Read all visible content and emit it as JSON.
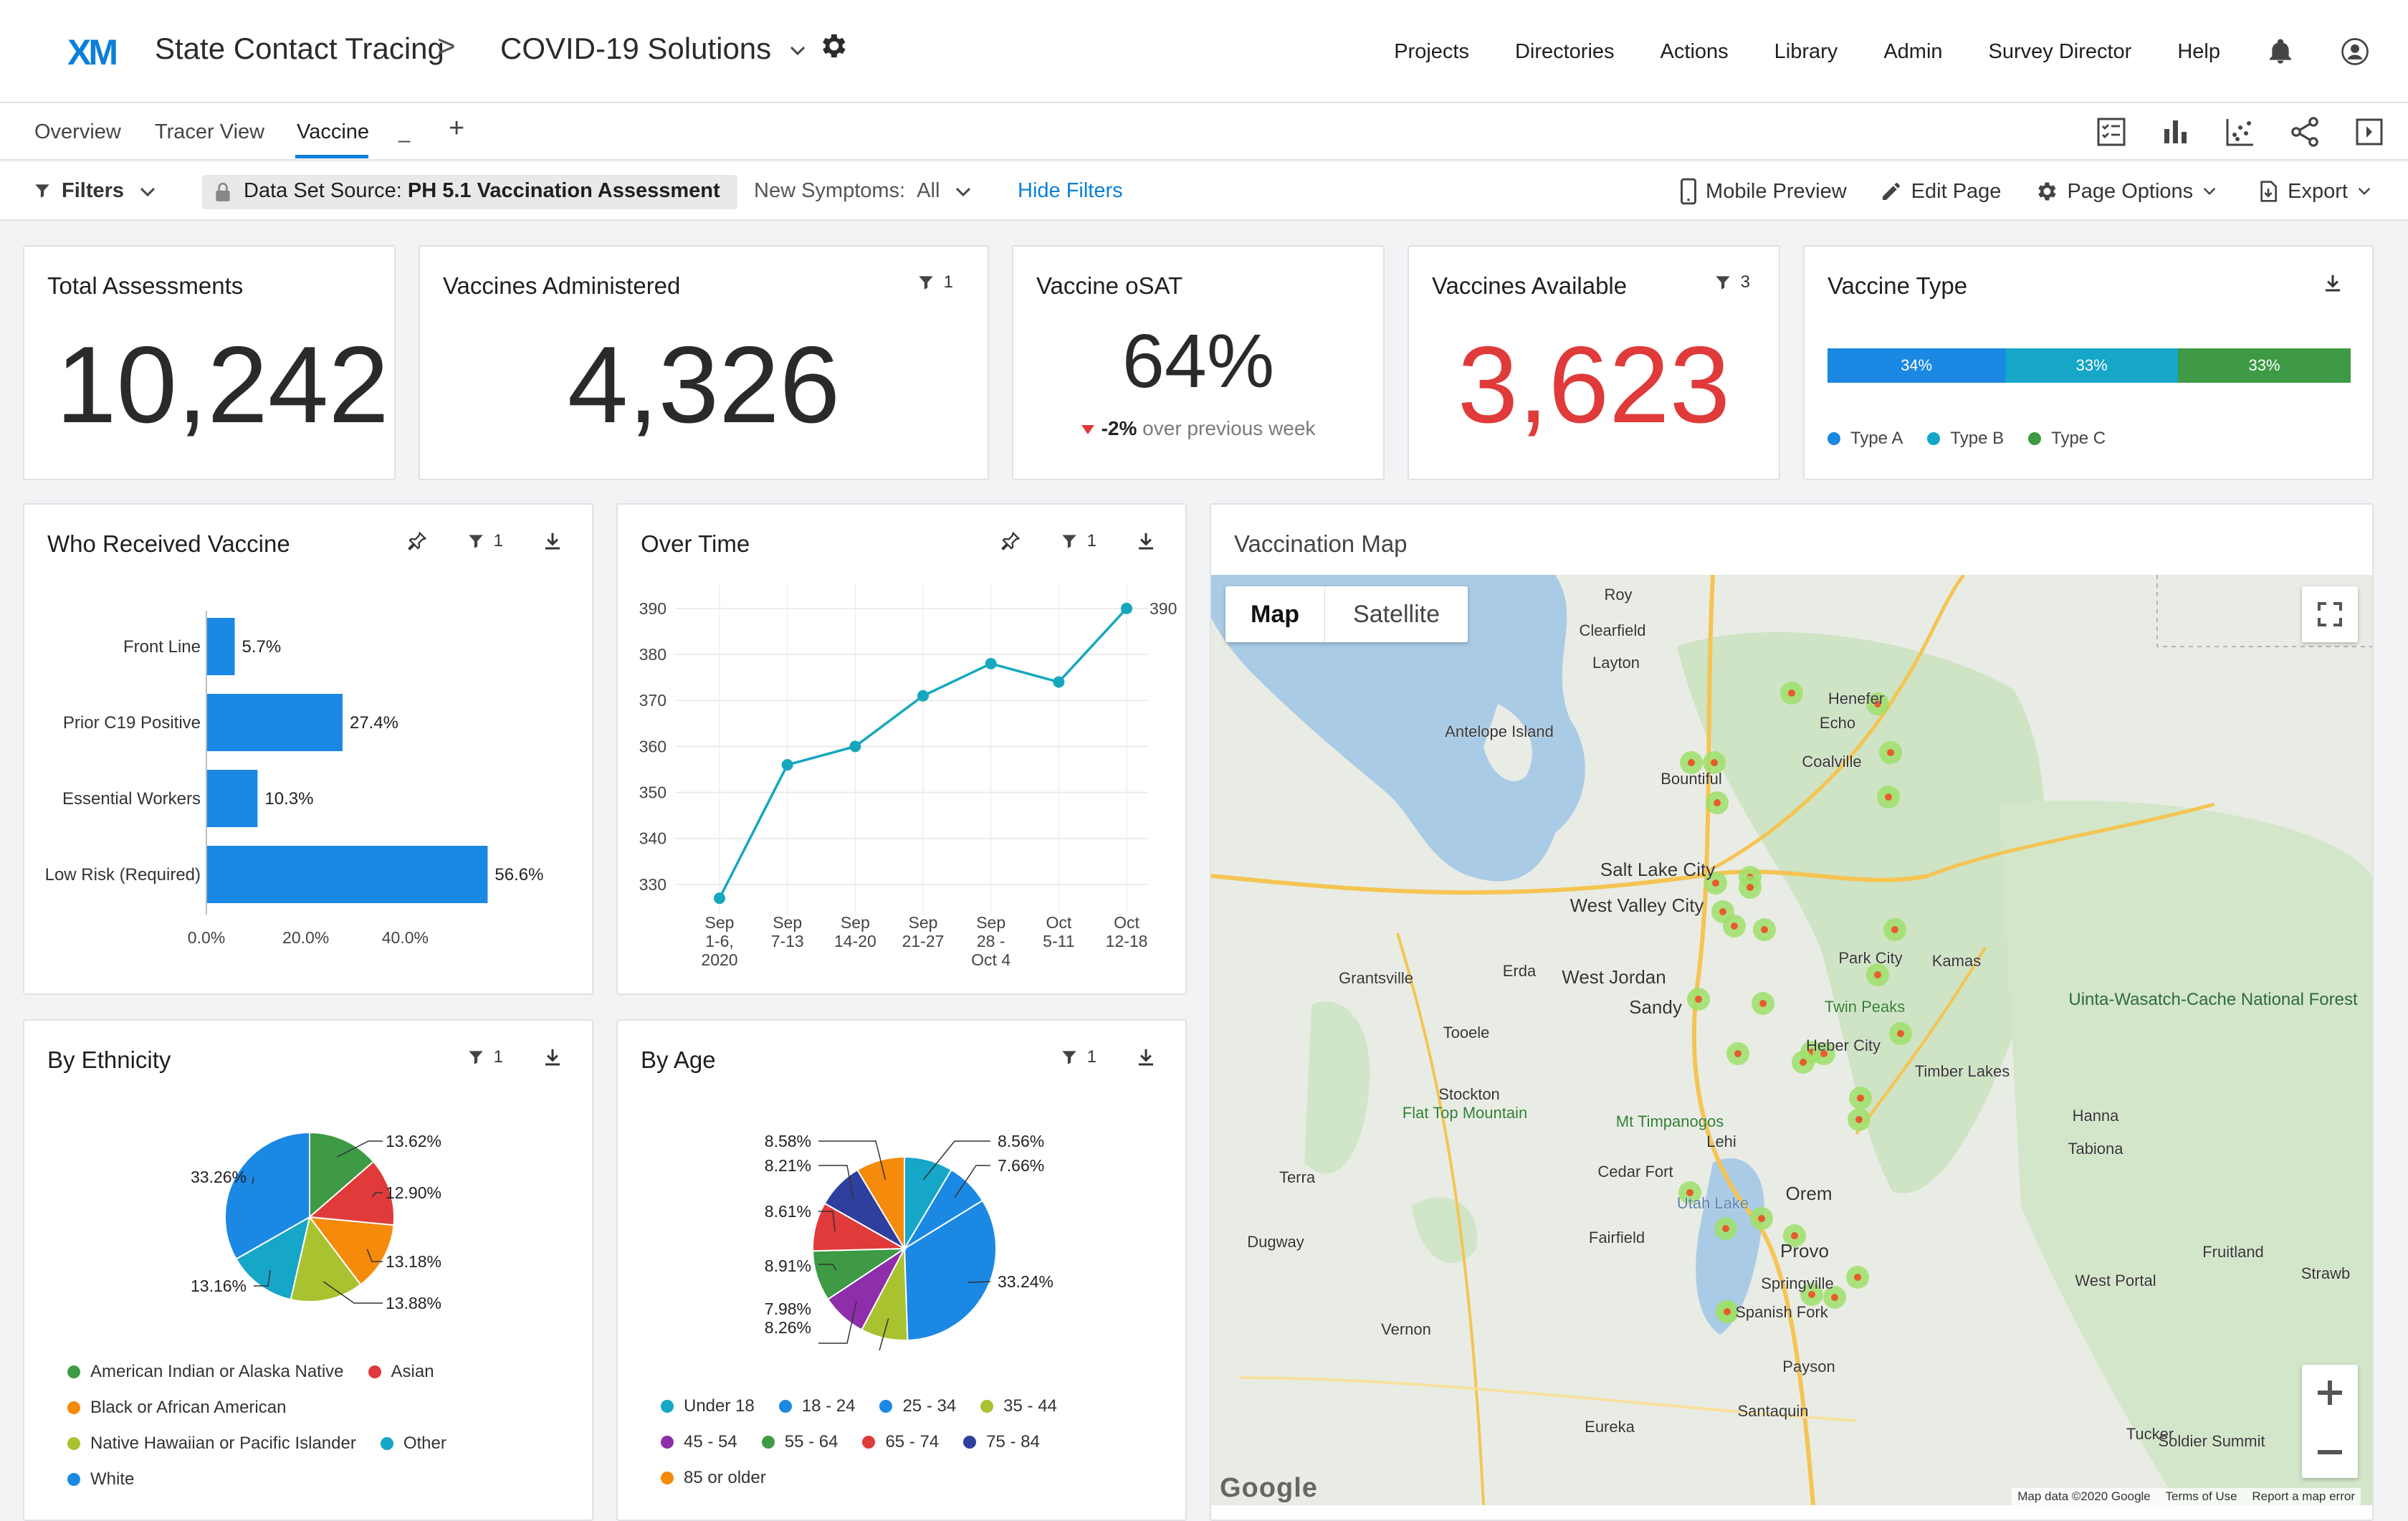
{
  "header": {
    "logo": "XM",
    "crumb1": "State Contact Tracing",
    "crumb_sep": ">",
    "crumb2": "COVID-19 Solutions",
    "nav": [
      "Projects",
      "Directories",
      "Actions",
      "Library",
      "Admin",
      "Survey Director",
      "Help"
    ]
  },
  "tabs": [
    "Overview",
    "Tracer View",
    "Vaccine",
    "_",
    "+"
  ],
  "filters": {
    "filters_label": "Filters",
    "dataset_label": "Data Set Source:",
    "dataset_value": "PH 5.1 Vaccination Assessment",
    "symptoms_label": "New Symptoms:",
    "symptoms_value": "All",
    "hide_filters": "Hide Filters",
    "mobile_preview": "Mobile Preview",
    "edit_page": "Edit Page",
    "page_options": "Page Options",
    "export": "Export"
  },
  "kpis": {
    "total": {
      "title": "Total Assessments",
      "value": "10,242"
    },
    "administered": {
      "title": "Vaccines Administered",
      "value": "4,326",
      "filter_count": "1"
    },
    "osat": {
      "title": "Vaccine oSAT",
      "value": "64%",
      "delta": "-2%",
      "delta_text": "over previous week"
    },
    "available": {
      "title": "Vaccines Available",
      "value": "3,623",
      "filter_count": "3",
      "color": "#e03a3a"
    },
    "type": {
      "title": "Vaccine Type",
      "segments": [
        {
          "label": "34%",
          "name": "Type A",
          "value": 34,
          "color": "#1b88e4"
        },
        {
          "label": "33%",
          "name": "Type B",
          "value": 33,
          "color": "#15a6c8"
        },
        {
          "label": "33%",
          "name": "Type C",
          "value": 33,
          "color": "#3e9a45"
        }
      ]
    }
  },
  "who_received": {
    "title": "Who Received Vaccine",
    "filter_count": "1",
    "chart_data": {
      "type": "bar",
      "orientation": "horizontal",
      "categories": [
        "Front Line",
        "Prior C19 Positive",
        "Essential Workers",
        "Low Risk (Required)"
      ],
      "values": [
        5.7,
        27.4,
        10.3,
        56.6
      ],
      "value_labels": [
        "5.7%",
        "27.4%",
        "10.3%",
        "56.6%"
      ],
      "xticks": [
        "0.0%",
        "20.0%",
        "40.0%"
      ],
      "xlim": [
        0,
        60
      ],
      "color": "#1b88e4"
    }
  },
  "over_time": {
    "title": "Over Time",
    "filter_count": "1",
    "chart_data": {
      "type": "line",
      "x": [
        [
          "Sep",
          "1-6,",
          "2020"
        ],
        [
          "Sep",
          "7-13"
        ],
        [
          "Sep",
          "14-20"
        ],
        [
          "Sep",
          "21-27"
        ],
        [
          "Sep",
          "28 -",
          "Oct 4"
        ],
        [
          "Oct",
          "5-11"
        ],
        [
          "Oct",
          "12-18"
        ]
      ],
      "values": [
        327,
        356,
        360,
        371,
        378,
        374,
        390
      ],
      "last_label": "390",
      "yticks": [
        330,
        340,
        350,
        360,
        370,
        380,
        390
      ],
      "ylim": [
        325,
        392
      ],
      "color": "#16a7bf"
    }
  },
  "by_ethnicity": {
    "title": "By Ethnicity",
    "filter_count": "1",
    "chart_data": {
      "type": "pie",
      "slices": [
        {
          "name": "American Indian or Alaska Native",
          "value": 13.62,
          "label": "13.62%",
          "color": "#3e9a45"
        },
        {
          "name": "Asian",
          "value": 12.9,
          "label": "12.90%",
          "color": "#e03a3a"
        },
        {
          "name": "Black or African American",
          "value": 13.18,
          "label": "13.18%",
          "color": "#f58a0b"
        },
        {
          "name": "Native Hawaiian or Pacific Islander",
          "value": 13.88,
          "label": "13.88%",
          "color": "#a9c230"
        },
        {
          "name": "Other",
          "value": 13.16,
          "label": "13.16%",
          "color": "#15a6c8"
        },
        {
          "name": "White",
          "value": 33.26,
          "label": "33.26%",
          "color": "#1b88e4"
        }
      ]
    }
  },
  "by_age": {
    "title": "By Age",
    "filter_count": "1",
    "chart_data": {
      "type": "pie",
      "slices": [
        {
          "name": "Under 18",
          "value": 8.56,
          "label": "8.56%",
          "color": "#15a6c8"
        },
        {
          "name": "18 - 24",
          "value": 7.66,
          "label": "7.66%",
          "color": "#1b88e4"
        },
        {
          "name": "25 - 34",
          "value": 33.24,
          "label": "33.24%",
          "color": "#1b88e4"
        },
        {
          "name": "35 - 44",
          "value": 8.26,
          "label": "8.26%",
          "color": "#a9c230"
        },
        {
          "name": "45 - 54",
          "value": 7.98,
          "label": "7.98%",
          "color": "#8e2eaa"
        },
        {
          "name": "55 - 64",
          "value": 8.91,
          "label": "8.91%",
          "color": "#3e9a45"
        },
        {
          "name": "65 - 74",
          "value": 8.61,
          "label": "8.61%",
          "color": "#e03a3a"
        },
        {
          "name": "75 - 84",
          "value": 8.21,
          "label": "8.21%",
          "color": "#2e3f9e"
        },
        {
          "name": "85 or older",
          "value": 8.58,
          "label": "8.58%",
          "color": "#f58a0b"
        }
      ]
    }
  },
  "map": {
    "title": "Vaccination Map",
    "map_btn": "Map",
    "satellite_btn": "Satellite",
    "places": [
      "Roy",
      "Clearfield",
      "Layton",
      "Henefer",
      "Echo",
      "Coalville",
      "Antelope Island",
      "Bountiful",
      "Salt Lake City",
      "West Valley City",
      "Grantsville",
      "Erda",
      "West Jordan",
      "Sandy",
      "Park City",
      "Kamas",
      "Twin Peaks",
      "Tooele",
      "Heber City",
      "Timber Lakes",
      "Stockton",
      "Flat Top Mountain",
      "Mt Timpanogos",
      "Lehi",
      "Hanna",
      "Tabiona",
      "Terra",
      "Cedar Fort",
      "Orem",
      "Dugway",
      "Fairfield",
      "Provo",
      "Fruitland",
      "Springville",
      "West Portal",
      "Spanish Fork",
      "Vernon",
      "Payson",
      "Santaquin",
      "Eureka",
      "Tucker",
      "Soldier Summit",
      "Uinta-Wasatch-Cache National Forest",
      "Utah Lake",
      "Strawb"
    ],
    "attribution": [
      "Map data ©2020 Google",
      "Terms of Use",
      "Report a map error"
    ],
    "google": "Google"
  }
}
